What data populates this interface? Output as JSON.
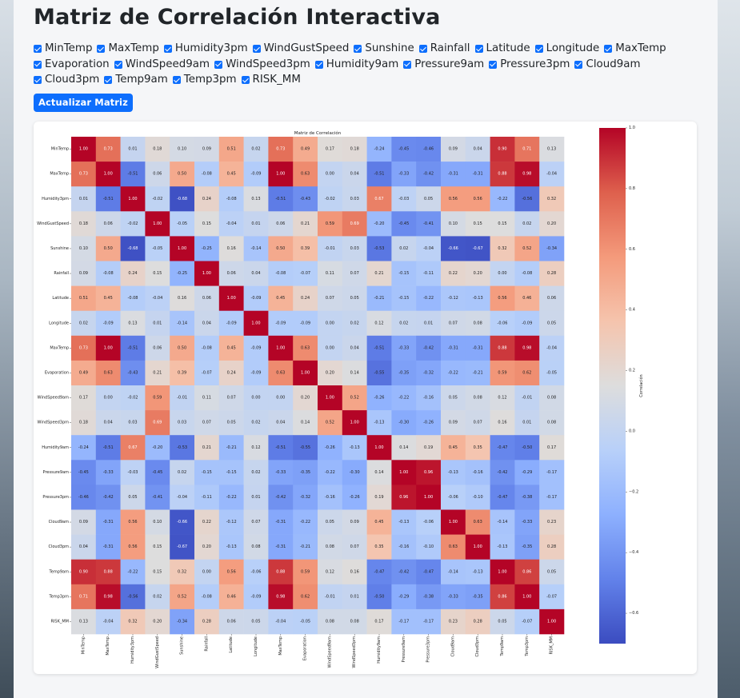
{
  "page": {
    "title": "Matriz de Correlación Interactiva"
  },
  "checkboxes": [
    {
      "label": "MinTemp",
      "checked": true
    },
    {
      "label": "MaxTemp",
      "checked": true
    },
    {
      "label": "Humidity3pm",
      "checked": true
    },
    {
      "label": "WindGustSpeed",
      "checked": true
    },
    {
      "label": "Sunshine",
      "checked": true
    },
    {
      "label": "Rainfall",
      "checked": true
    },
    {
      "label": "Latitude",
      "checked": true
    },
    {
      "label": "Longitude",
      "checked": true
    },
    {
      "label": "MaxTemp",
      "checked": true
    },
    {
      "label": "Evaporation",
      "checked": true
    },
    {
      "label": "WindSpeed9am",
      "checked": true
    },
    {
      "label": "WindSpeed3pm",
      "checked": true
    },
    {
      "label": "Humidity9am",
      "checked": true
    },
    {
      "label": "Pressure9am",
      "checked": true
    },
    {
      "label": "Pressure3pm",
      "checked": true
    },
    {
      "label": "Cloud9am",
      "checked": true
    },
    {
      "label": "Cloud3pm",
      "checked": true
    },
    {
      "label": "Temp9am",
      "checked": true
    },
    {
      "label": "Temp3pm",
      "checked": true
    },
    {
      "label": "RISK_MM",
      "checked": true
    }
  ],
  "actions": {
    "update_label": "Actualizar Matriz"
  },
  "colors": {
    "accent": "#0d6efd",
    "low": "#3b4cc0",
    "mid": "#dddddd",
    "high": "#b40426"
  },
  "chart_data": {
    "type": "heatmap",
    "title": "Matriz de Correlación",
    "colorbar_label": "Correlación",
    "colorbar_ticks": [
      "1.0",
      "0.8",
      "0.6",
      "0.4",
      "0.2",
      "0.0",
      "−0.2",
      "−0.4",
      "−0.6"
    ],
    "colorbar_range": [
      -0.7,
      1.0
    ],
    "labels": [
      "MinTemp",
      "MaxTemp",
      "Humidity3pm",
      "WindGustSpeed",
      "Sunshine",
      "Rainfall",
      "Latitude",
      "Longitude",
      "MaxTemp",
      "Evaporation",
      "WindSpeed9am",
      "WindSpeed3pm",
      "Humidity9am",
      "Pressure9am",
      "Pressure3pm",
      "Cloud9am",
      "Cloud3pm",
      "Temp9am",
      "Temp3pm",
      "RISK_MM"
    ],
    "matrix": [
      [
        1.0,
        0.73,
        0.01,
        0.18,
        0.1,
        0.09,
        0.51,
        0.02,
        0.73,
        0.49,
        0.17,
        0.18,
        -0.24,
        -0.45,
        -0.46,
        0.09,
        0.04,
        0.9,
        0.71,
        0.13
      ],
      [
        0.73,
        1.0,
        -0.51,
        0.06,
        0.5,
        -0.08,
        0.45,
        -0.09,
        1.0,
        0.63,
        0.0,
        0.04,
        -0.51,
        -0.33,
        -0.42,
        -0.31,
        -0.31,
        0.88,
        0.98,
        -0.04
      ],
      [
        0.01,
        -0.51,
        1.0,
        -0.02,
        -0.68,
        0.24,
        -0.08,
        0.13,
        -0.51,
        -0.43,
        -0.02,
        0.03,
        0.67,
        -0.03,
        0.05,
        0.56,
        0.56,
        -0.22,
        -0.56,
        0.32
      ],
      [
        0.18,
        0.06,
        -0.02,
        1.0,
        -0.05,
        0.15,
        -0.04,
        0.01,
        0.06,
        0.21,
        0.59,
        0.69,
        -0.2,
        -0.45,
        -0.41,
        0.1,
        0.15,
        0.15,
        0.02,
        0.2
      ],
      [
        0.1,
        0.5,
        -0.68,
        -0.05,
        1.0,
        -0.25,
        0.16,
        -0.14,
        0.5,
        0.39,
        -0.01,
        0.03,
        -0.53,
        0.02,
        -0.04,
        -0.66,
        -0.67,
        0.32,
        0.52,
        -0.34
      ],
      [
        0.09,
        -0.08,
        0.24,
        0.15,
        -0.25,
        1.0,
        0.06,
        0.04,
        -0.08,
        -0.07,
        0.11,
        0.07,
        0.21,
        -0.15,
        -0.11,
        0.22,
        0.2,
        0.0,
        -0.08,
        0.28
      ],
      [
        0.51,
        0.45,
        -0.08,
        -0.04,
        0.16,
        0.06,
        1.0,
        -0.09,
        0.45,
        0.24,
        0.07,
        0.05,
        -0.21,
        -0.15,
        -0.22,
        -0.12,
        -0.13,
        0.56,
        0.46,
        0.06
      ],
      [
        0.02,
        -0.09,
        0.13,
        0.01,
        -0.14,
        0.04,
        -0.09,
        1.0,
        -0.09,
        -0.09,
        -0.0,
        0.02,
        0.12,
        0.02,
        0.01,
        0.07,
        0.08,
        -0.06,
        -0.09,
        0.05
      ],
      [
        0.73,
        1.0,
        -0.51,
        0.06,
        0.5,
        -0.08,
        0.45,
        -0.09,
        1.0,
        0.63,
        0.0,
        0.04,
        -0.51,
        -0.33,
        -0.42,
        -0.31,
        -0.31,
        0.88,
        0.98,
        -0.04
      ],
      [
        0.49,
        0.63,
        -0.43,
        0.21,
        0.39,
        -0.07,
        0.24,
        -0.09,
        0.63,
        1.0,
        0.2,
        0.14,
        -0.55,
        -0.35,
        -0.32,
        -0.22,
        -0.21,
        0.59,
        0.62,
        -0.05
      ],
      [
        0.17,
        0.0,
        -0.02,
        0.59,
        -0.01,
        0.11,
        0.07,
        -0.0,
        0.0,
        0.2,
        1.0,
        0.52,
        -0.26,
        -0.22,
        -0.16,
        0.05,
        0.08,
        0.12,
        -0.01,
        0.08
      ],
      [
        0.18,
        0.04,
        0.03,
        0.69,
        0.03,
        0.07,
        0.05,
        0.02,
        0.04,
        0.14,
        0.52,
        1.0,
        -0.13,
        -0.3,
        -0.26,
        0.09,
        0.07,
        0.16,
        0.01,
        0.08
      ],
      [
        -0.24,
        -0.51,
        0.67,
        -0.2,
        -0.53,
        0.21,
        -0.21,
        0.12,
        -0.51,
        -0.55,
        -0.26,
        -0.13,
        1.0,
        0.14,
        0.19,
        0.45,
        0.35,
        -0.47,
        -0.5,
        0.17
      ],
      [
        -0.45,
        -0.33,
        -0.03,
        -0.45,
        0.02,
        -0.15,
        -0.15,
        0.02,
        -0.33,
        -0.35,
        -0.22,
        -0.3,
        0.14,
        1.0,
        0.96,
        -0.13,
        -0.16,
        -0.42,
        -0.29,
        -0.17
      ],
      [
        -0.46,
        -0.42,
        0.05,
        -0.41,
        -0.04,
        -0.11,
        -0.22,
        0.01,
        -0.42,
        -0.32,
        -0.16,
        -0.26,
        0.19,
        0.96,
        1.0,
        -0.06,
        -0.1,
        -0.47,
        -0.38,
        -0.17
      ],
      [
        0.09,
        -0.31,
        0.56,
        0.1,
        -0.66,
        0.22,
        -0.12,
        0.07,
        -0.31,
        -0.22,
        0.05,
        0.09,
        0.45,
        -0.13,
        -0.06,
        1.0,
        0.63,
        -0.14,
        -0.33,
        0.23
      ],
      [
        0.04,
        -0.31,
        0.56,
        0.15,
        -0.67,
        0.2,
        -0.13,
        0.08,
        -0.31,
        -0.21,
        0.08,
        0.07,
        0.35,
        -0.16,
        -0.1,
        0.63,
        1.0,
        -0.13,
        -0.35,
        0.28
      ],
      [
        0.9,
        0.88,
        -0.22,
        0.15,
        0.32,
        0.0,
        0.56,
        -0.06,
        0.88,
        0.59,
        0.12,
        0.16,
        -0.47,
        -0.42,
        -0.47,
        -0.14,
        -0.13,
        1.0,
        0.86,
        0.05
      ],
      [
        0.71,
        0.98,
        -0.56,
        0.02,
        0.52,
        -0.08,
        0.46,
        -0.09,
        0.98,
        0.62,
        -0.01,
        0.01,
        -0.5,
        -0.29,
        -0.38,
        -0.33,
        -0.35,
        0.86,
        1.0,
        -0.07
      ],
      [
        0.13,
        -0.04,
        0.32,
        0.2,
        -0.34,
        0.28,
        0.06,
        0.05,
        -0.04,
        -0.05,
        0.08,
        0.08,
        0.17,
        -0.17,
        -0.17,
        0.23,
        0.28,
        0.05,
        -0.07,
        1.0
      ]
    ]
  }
}
